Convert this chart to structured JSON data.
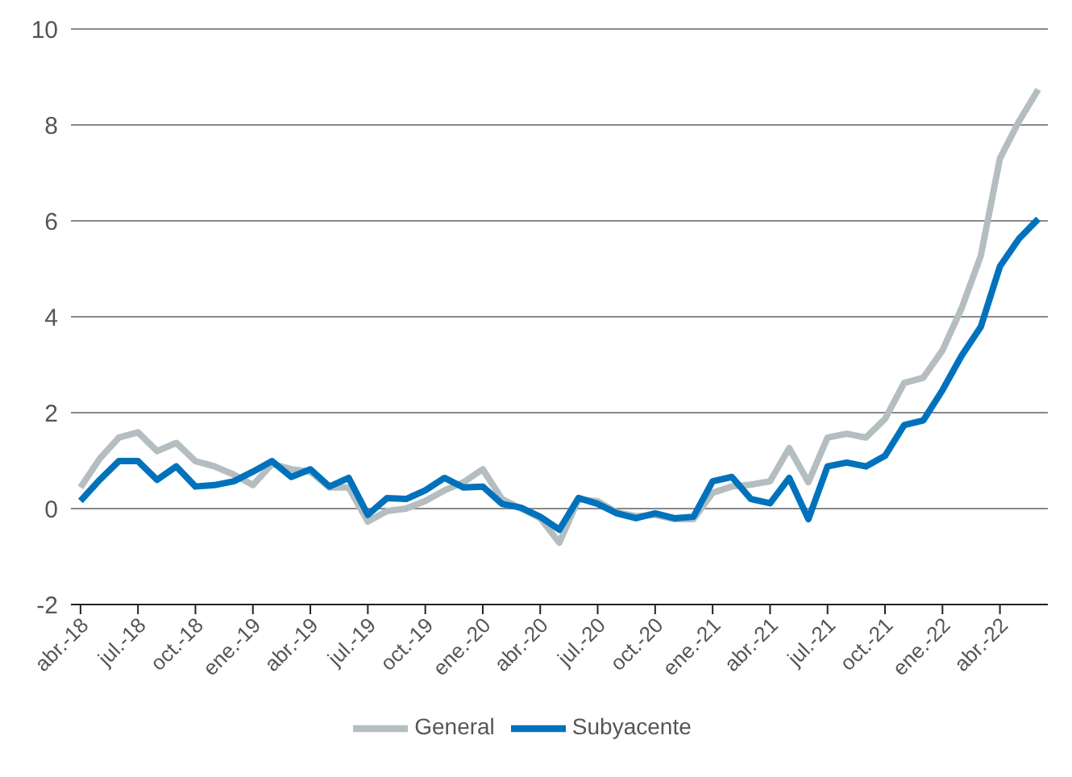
{
  "chart_data": {
    "type": "line",
    "categories": [
      "abr.-18",
      null,
      null,
      "jul.-18",
      null,
      null,
      "oct.-18",
      null,
      null,
      "ene.-19",
      null,
      null,
      "abr.-19",
      null,
      null,
      "jul.-19",
      null,
      null,
      "oct.-19",
      null,
      null,
      "ene.-20",
      null,
      null,
      "abr.-20",
      null,
      null,
      "jul.-20",
      null,
      null,
      "oct.-20",
      null,
      null,
      "ene.-21",
      null,
      null,
      "abr.-21",
      null,
      null,
      "jul.-21",
      null,
      null,
      "oct.-21",
      null,
      null,
      "ene.-22",
      null,
      null,
      "abr.-22",
      null,
      null
    ],
    "series": [
      {
        "name": "General",
        "color": "#b4bec0",
        "values": [
          0.44,
          1.04,
          1.48,
          1.59,
          1.2,
          1.37,
          0.99,
          0.88,
          0.71,
          0.49,
          0.93,
          0.82,
          0.77,
          0.44,
          0.44,
          -0.27,
          -0.05,
          0,
          0.16,
          0.38,
          0.55,
          0.82,
          0.2,
          0,
          -0.2,
          -0.71,
          0.2,
          0.15,
          -0.08,
          -0.16,
          -0.13,
          -0.22,
          -0.22,
          0.33,
          0.46,
          0.5,
          0.57,
          1.26,
          0.55,
          1.48,
          1.56,
          1.48,
          1.87,
          2.62,
          2.73,
          3.3,
          4.18,
          5.27,
          7.3,
          8.08,
          8.74
        ]
      },
      {
        "name": "Subyacente",
        "color": "#0072bc",
        "values": [
          0.16,
          0.6,
          0.99,
          0.99,
          0.6,
          0.88,
          0.46,
          0.49,
          0.57,
          0.77,
          0.99,
          0.66,
          0.82,
          0.46,
          0.64,
          -0.13,
          0.22,
          0.2,
          0.38,
          0.64,
          0.44,
          0.46,
          0.1,
          0.02,
          -0.17,
          -0.44,
          0.22,
          0.1,
          -0.1,
          -0.2,
          -0.1,
          -0.2,
          -0.17,
          0.57,
          0.66,
          0.2,
          0.11,
          0.64,
          -0.22,
          0.88,
          0.96,
          0.88,
          1.1,
          1.74,
          1.84,
          2.47,
          3.19,
          3.79,
          5.05,
          5.63,
          6.04
        ]
      }
    ],
    "ylim": [
      -2,
      10
    ],
    "yticks": [
      -2,
      0,
      2,
      4,
      6,
      8,
      10
    ],
    "grid": "y",
    "legend": "bottom",
    "marker": "none",
    "line_style": "solid"
  }
}
